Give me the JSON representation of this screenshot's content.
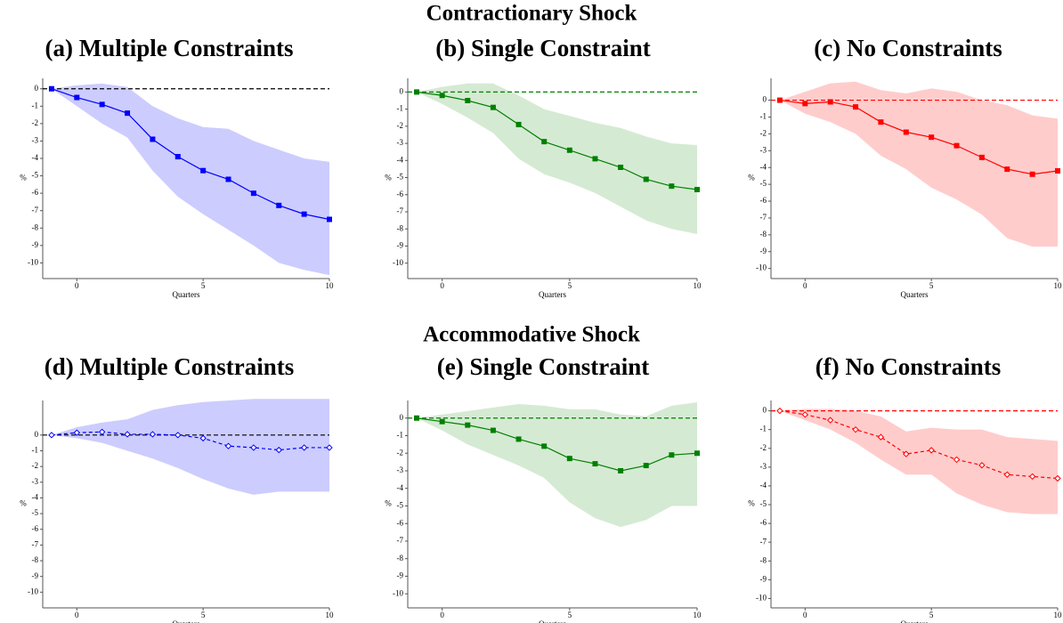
{
  "headings": [
    "Contractionary Shock",
    "Accommodative Shock"
  ],
  "chart_data": [
    {
      "type": "line",
      "title": "(a) Multiple Constraints",
      "xlabel": "Quarters",
      "ylabel": "%",
      "x": [
        -1,
        0,
        1,
        2,
        3,
        4,
        5,
        6,
        7,
        8,
        9,
        10
      ],
      "xlim": [
        -1.35,
        10
      ],
      "xticks": [
        0,
        5,
        10
      ],
      "ylim": [
        -10.9,
        0.6
      ],
      "yticks": [
        0,
        -1,
        -2,
        -3,
        -4,
        -5,
        -6,
        -7,
        -8,
        -9,
        -10
      ],
      "zero_line": true,
      "zero_line_color": "#000000",
      "series": [
        {
          "color": "#0000ff",
          "line_style": "solid",
          "marker": "square",
          "values": [
            0,
            -0.5,
            -0.9,
            -1.4,
            -2.9,
            -3.9,
            -4.7,
            -5.2,
            -6.0,
            -6.7,
            -7.2,
            -7.5
          ]
        }
      ],
      "band": {
        "color": "#ccccff",
        "upper": [
          0,
          0.2,
          0.3,
          0.1,
          -1.0,
          -1.7,
          -2.2,
          -2.3,
          -3.0,
          -3.5,
          -4.0,
          -4.2
        ],
        "lower": [
          0,
          -1.0,
          -2.0,
          -2.8,
          -4.7,
          -6.2,
          -7.2,
          -8.1,
          -9.0,
          -10.0,
          -10.4,
          -10.7
        ]
      }
    },
    {
      "type": "line",
      "title": "(b) Single Constraint",
      "xlabel": "Quarters",
      "ylabel": "%",
      "x": [
        -1,
        0,
        1,
        2,
        3,
        4,
        5,
        6,
        7,
        8,
        9,
        10
      ],
      "xlim": [
        -1.35,
        10
      ],
      "xticks": [
        0,
        5,
        10
      ],
      "ylim": [
        -10.9,
        0.8
      ],
      "yticks": [
        0,
        -1,
        -2,
        -3,
        -4,
        -5,
        -6,
        -7,
        -8,
        -9,
        -10
      ],
      "zero_line": true,
      "zero_line_color": "#008000",
      "series": [
        {
          "color": "#008000",
          "line_style": "solid",
          "marker": "square",
          "values": [
            0,
            -0.2,
            -0.5,
            -0.9,
            -1.9,
            -2.9,
            -3.4,
            -3.9,
            -4.4,
            -5.1,
            -5.5,
            -5.7
          ]
        }
      ],
      "band": {
        "color": "#d5ead3",
        "upper": [
          0,
          0.3,
          0.5,
          0.5,
          -0.2,
          -1.0,
          -1.4,
          -1.8,
          -2.1,
          -2.6,
          -3.0,
          -3.1
        ],
        "lower": [
          0,
          -0.7,
          -1.5,
          -2.4,
          -3.9,
          -4.8,
          -5.3,
          -5.9,
          -6.7,
          -7.5,
          -8.0,
          -8.3
        ]
      }
    },
    {
      "type": "line",
      "title": "(c) No Constraints",
      "xlabel": "Quarters",
      "ylabel": "%",
      "x": [
        -1,
        0,
        1,
        2,
        3,
        4,
        5,
        6,
        7,
        8,
        9,
        10
      ],
      "xlim": [
        -1.35,
        10
      ],
      "xticks": [
        0,
        5,
        10
      ],
      "ylim": [
        -10.6,
        1.3
      ],
      "yticks": [
        0,
        -1,
        -2,
        -3,
        -4,
        -5,
        -6,
        -7,
        -8,
        -9,
        -10
      ],
      "zero_line": true,
      "zero_line_color": "#ff0000",
      "series": [
        {
          "color": "#ff0000",
          "line_style": "solid",
          "marker": "square",
          "values": [
            0,
            -0.2,
            -0.1,
            -0.4,
            -1.3,
            -1.9,
            -2.2,
            -2.7,
            -3.4,
            -4.1,
            -4.4,
            -4.2
          ]
        }
      ],
      "band": {
        "color": "#ffcccc",
        "upper": [
          0,
          0.5,
          1.0,
          1.1,
          0.6,
          0.4,
          0.7,
          0.5,
          0.0,
          -0.3,
          -0.9,
          -1.1
        ],
        "lower": [
          0,
          -0.8,
          -1.3,
          -2.0,
          -3.3,
          -4.1,
          -5.2,
          -5.9,
          -6.8,
          -8.2,
          -8.7,
          -8.7
        ]
      }
    },
    {
      "type": "line",
      "title": "(d) Multiple Constraints",
      "xlabel": "Quarters",
      "ylabel": "%",
      "x": [
        -1,
        0,
        1,
        2,
        3,
        4,
        5,
        6,
        7,
        8,
        9,
        10
      ],
      "xlim": [
        -1.35,
        10
      ],
      "xticks": [
        0,
        5,
        10
      ],
      "ylim": [
        -11,
        2.2
      ],
      "yticks": [
        0,
        -1,
        -2,
        -3,
        -4,
        -5,
        -6,
        -7,
        -8,
        -9,
        -10
      ],
      "zero_line": true,
      "zero_line_color": "#000000",
      "series": [
        {
          "color": "#0000ff",
          "line_style": "dashed",
          "marker": "diamond",
          "values": [
            0,
            0.15,
            0.2,
            0.05,
            0.05,
            0,
            -0.2,
            -0.7,
            -0.8,
            -0.95,
            -0.8,
            -0.8
          ]
        }
      ],
      "band": {
        "color": "#ccccff",
        "upper": [
          0,
          0.5,
          0.8,
          1.0,
          1.6,
          1.9,
          2.1,
          2.2,
          2.3,
          2.3,
          2.3,
          2.3
        ],
        "lower": [
          0,
          -0.2,
          -0.5,
          -1.0,
          -1.5,
          -2.1,
          -2.8,
          -3.4,
          -3.8,
          -3.6,
          -3.6,
          -3.6
        ]
      }
    },
    {
      "type": "line",
      "title": "(e) Single Constraint",
      "xlabel": "Quarters",
      "ylabel": "%",
      "x": [
        -1,
        0,
        1,
        2,
        3,
        4,
        5,
        6,
        7,
        8,
        9,
        10
      ],
      "xlim": [
        -1.35,
        10
      ],
      "xticks": [
        0,
        5,
        10
      ],
      "ylim": [
        -10.8,
        1.0
      ],
      "yticks": [
        0,
        -1,
        -2,
        -3,
        -4,
        -5,
        -6,
        -7,
        -8,
        -9,
        -10
      ],
      "zero_line": true,
      "zero_line_color": "#008000",
      "series": [
        {
          "color": "#008000",
          "line_style": "solid",
          "marker": "square",
          "values": [
            0,
            -0.2,
            -0.4,
            -0.7,
            -1.2,
            -1.6,
            -2.3,
            -2.6,
            -3.0,
            -2.7,
            -2.1,
            -2.0
          ]
        }
      ],
      "band": {
        "color": "#d5ead3",
        "upper": [
          0,
          0.2,
          0.4,
          0.6,
          0.8,
          0.7,
          0.5,
          0.5,
          0.2,
          0.1,
          0.7,
          0.9
        ],
        "lower": [
          0,
          -0.7,
          -1.5,
          -2.1,
          -2.7,
          -3.4,
          -4.8,
          -5.7,
          -6.2,
          -5.8,
          -5.0,
          -5.0
        ]
      }
    },
    {
      "type": "line",
      "title": "(f) No Constraints",
      "xlabel": "Quarters",
      "ylabel": "%",
      "x": [
        -1,
        0,
        1,
        2,
        3,
        4,
        5,
        6,
        7,
        8,
        9,
        10
      ],
      "xlim": [
        -1.35,
        10
      ],
      "xticks": [
        0,
        5,
        10
      ],
      "ylim": [
        -10.5,
        0.55
      ],
      "yticks": [
        0,
        -1,
        -2,
        -3,
        -4,
        -5,
        -6,
        -7,
        -8,
        -9,
        -10
      ],
      "zero_line": true,
      "zero_line_color": "#ff0000",
      "series": [
        {
          "color": "#ff0000",
          "line_style": "dashed",
          "marker": "diamond",
          "values": [
            0,
            -0.2,
            -0.5,
            -1.0,
            -1.4,
            -2.3,
            -2.1,
            -2.6,
            -2.9,
            -3.4,
            -3.5,
            -3.6
          ]
        }
      ],
      "band": {
        "color": "#ffcccc",
        "upper": [
          0,
          0.1,
          0.1,
          0.0,
          -0.3,
          -1.1,
          -0.9,
          -1.0,
          -1.0,
          -1.4,
          -1.5,
          -1.6
        ],
        "lower": [
          0,
          -0.5,
          -1.0,
          -1.7,
          -2.6,
          -3.4,
          -3.4,
          -4.4,
          -5.0,
          -5.4,
          -5.5,
          -5.5
        ]
      }
    }
  ]
}
